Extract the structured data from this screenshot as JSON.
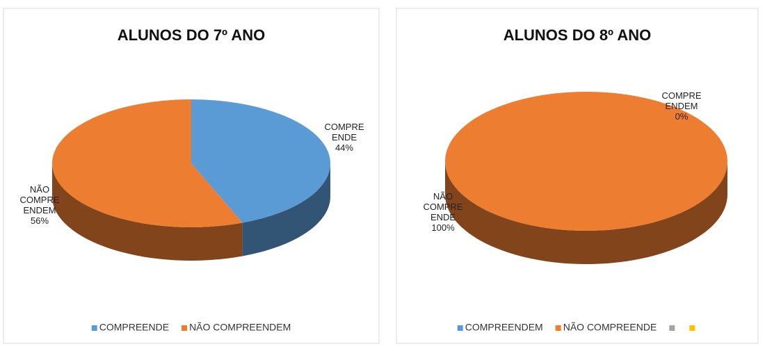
{
  "chart_data": [
    {
      "type": "pie",
      "title": "ALUNOS DO 7º ANO",
      "categories": [
        "COMPREENDE",
        "NÃO COMPREENDEM"
      ],
      "values": [
        44,
        56
      ],
      "value_labels": [
        "44%",
        "56%"
      ],
      "colors": [
        "#5b9bd5",
        "#ed7d31"
      ],
      "legend": "bottom"
    },
    {
      "type": "pie",
      "title": "ALUNOS DO 8º ANO",
      "categories": [
        "COMPREENDEM",
        "NÃO COMPREENDE",
        null,
        null
      ],
      "values": [
        0,
        100,
        null,
        null
      ],
      "value_labels": [
        "0%",
        "100%",
        null,
        null
      ],
      "colors": [
        "#5b9bd5",
        "#ed7d31",
        "#a5a5a5",
        "#ffc000"
      ],
      "legend": "bottom"
    }
  ]
}
